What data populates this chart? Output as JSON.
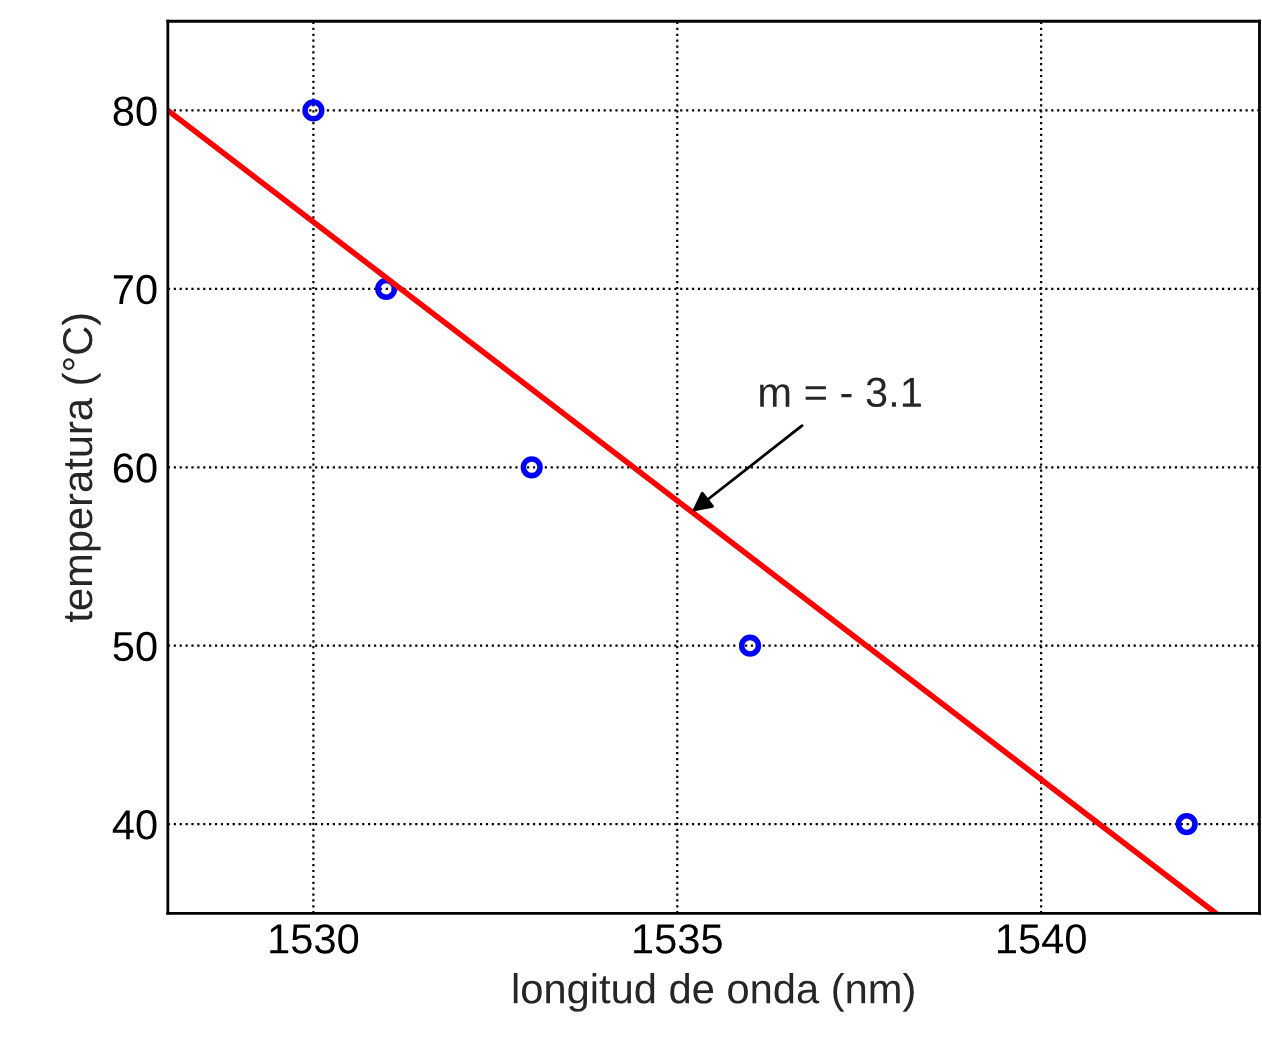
{
  "chart_data": {
    "type": "scatter",
    "xlabel": "longitud de onda (nm)",
    "ylabel": "temperatura (°C)",
    "xlim": [
      1528,
      1543
    ],
    "ylim": [
      35,
      85
    ],
    "xticks": [
      1530,
      1535,
      1540
    ],
    "yticks": [
      40,
      50,
      60,
      70,
      80
    ],
    "grid": true,
    "series": [
      {
        "color": "#0000ff",
        "marker": "circle",
        "x": [
          1530,
          1531,
          1533,
          1536,
          1542
        ],
        "values": [
          80,
          70,
          60,
          50,
          40
        ]
      },
      {
        "type": "line",
        "color": "#ff0000",
        "marker": "none",
        "line_style": "solid",
        "x": [
          1528,
          1542.4
        ],
        "values": [
          80,
          35
        ]
      }
    ],
    "annotations": [
      {
        "text": "m = - 3.1",
        "x": 1535.2,
        "y": 57.5
      }
    ]
  }
}
